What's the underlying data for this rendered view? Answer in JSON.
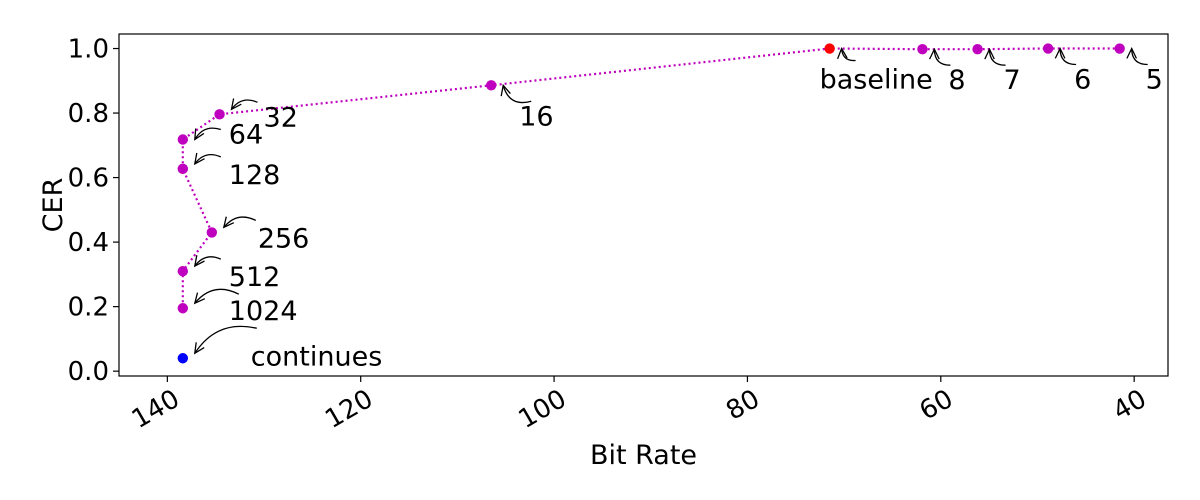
{
  "chart_data": {
    "type": "scatter",
    "xlabel": "Bit Rate",
    "ylabel": "CER",
    "xlim": [
      145,
      36.5
    ],
    "ylim": [
      -0.015,
      1.045
    ],
    "x_reversed": true,
    "xticks": [
      140,
      120,
      100,
      80,
      60,
      40
    ],
    "yticks": [
      0.0,
      0.2,
      0.4,
      0.6,
      0.8,
      1.0
    ],
    "ytick_labels": [
      "0.0",
      "0.2",
      "0.4",
      "0.6",
      "0.8",
      "1.0"
    ],
    "grid": false,
    "line_style": "dotted",
    "line_color": "#bf00bf",
    "series": [
      {
        "points": [
          {
            "label": "5",
            "x": 41.5,
            "y": 1.0
          },
          {
            "label": "6",
            "x": 48.9,
            "y": 1.0
          },
          {
            "label": "7",
            "x": 56.2,
            "y": 0.998
          },
          {
            "label": "8",
            "x": 61.9,
            "y": 0.998
          },
          {
            "label": "16",
            "x": 106.5,
            "y": 0.886
          },
          {
            "label": "32",
            "x": 134.6,
            "y": 0.796
          },
          {
            "label": "64",
            "x": 138.4,
            "y": 0.718
          },
          {
            "label": "128",
            "x": 138.4,
            "y": 0.627
          },
          {
            "label": "256",
            "x": 135.4,
            "y": 0.43
          },
          {
            "label": "512",
            "x": 138.4,
            "y": 0.31
          },
          {
            "label": "1024",
            "x": 138.4,
            "y": 0.195
          }
        ],
        "color": "#bf00bf"
      },
      {
        "points": [
          {
            "label": "baseline",
            "x": 71.5,
            "y": 1.0
          }
        ],
        "color": "#ff0000"
      },
      {
        "points": [
          {
            "label": "continues",
            "x": 138.4,
            "y": 0.04
          }
        ],
        "color": "#0000ff"
      }
    ]
  }
}
